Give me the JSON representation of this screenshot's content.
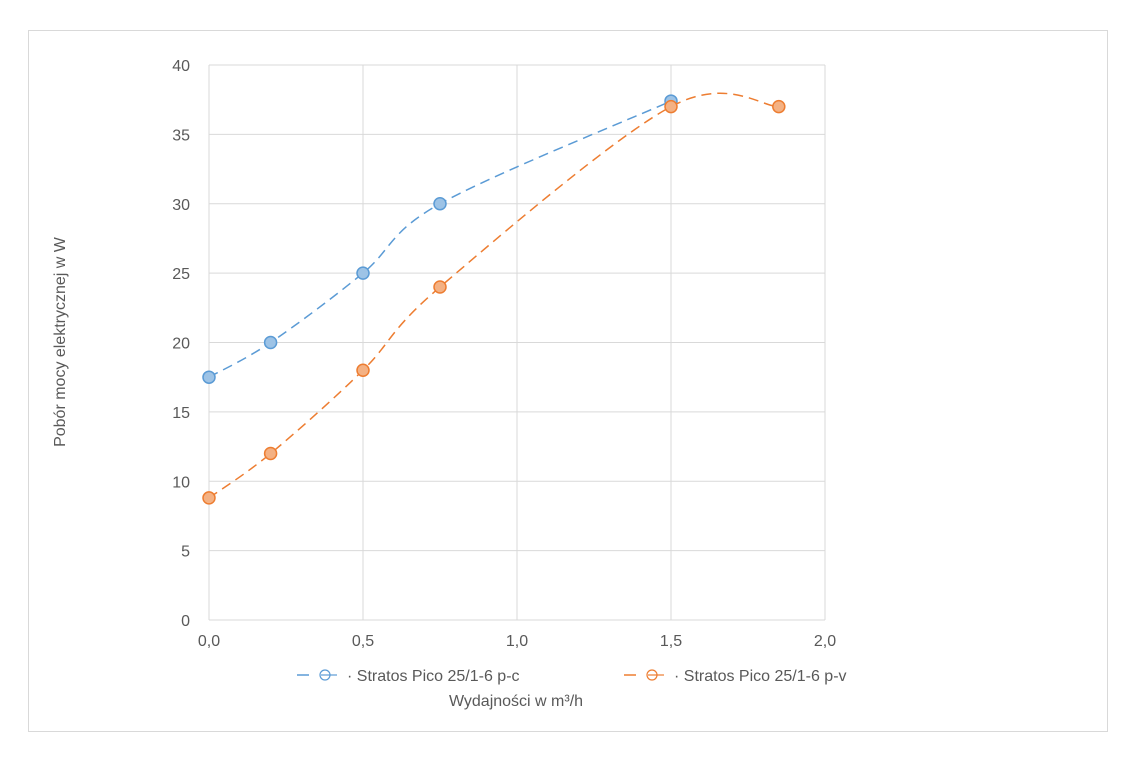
{
  "chart_data": {
    "type": "scatter",
    "title": "",
    "xlabel": "Wydajności w m³/h",
    "ylabel": "Pobór mocy elektrycznej w W",
    "xlim": [
      0,
      2
    ],
    "ylim": [
      0,
      40
    ],
    "xticks": [
      "0,0",
      "0,5",
      "1,0",
      "1,5",
      "2,0"
    ],
    "xtick_values": [
      0,
      0.5,
      1,
      1.5,
      2
    ],
    "yticks": [
      "0",
      "5",
      "10",
      "15",
      "20",
      "25",
      "30",
      "35",
      "40"
    ],
    "ytick_values": [
      0,
      5,
      10,
      15,
      20,
      25,
      30,
      35,
      40
    ],
    "grid": true,
    "legend_position": "bottom",
    "series": [
      {
        "name": "Stratos Pico 25/1-6 p-c",
        "color": "#5b9bd5",
        "fill": "#9dc3e6",
        "x": [
          0,
          0.2,
          0.5,
          0.75,
          1.5
        ],
        "y": [
          17.5,
          20,
          25,
          30,
          37.4
        ]
      },
      {
        "name": "Stratos Pico 25/1-6 p-v",
        "color": "#ed7d31",
        "fill": "#f4b183",
        "x": [
          0,
          0.2,
          0.5,
          0.75,
          1.5,
          1.85
        ],
        "y": [
          8.8,
          12,
          18,
          24,
          37,
          37
        ]
      }
    ]
  }
}
